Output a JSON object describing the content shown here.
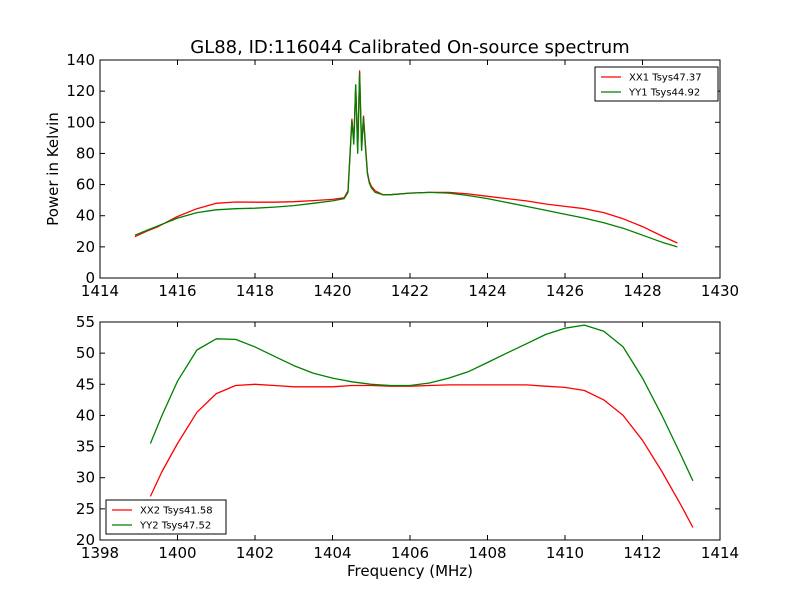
{
  "figure": {
    "title": "GL88, ID:116044 Calibrated On-source spectrum"
  },
  "colors": {
    "red": "#ff0000",
    "green": "#008000",
    "axes": "#000000",
    "background": "#ffffff"
  },
  "chart_data": [
    {
      "type": "line",
      "title": "GL88, ID:116044 Calibrated On-source spectrum",
      "xlabel": "",
      "ylabel": "Power in Kelvin",
      "xlim": [
        1414,
        1430
      ],
      "ylim": [
        0,
        140
      ],
      "xticks": [
        1414,
        1416,
        1418,
        1420,
        1422,
        1424,
        1426,
        1428,
        1430
      ],
      "yticks": [
        0,
        20,
        40,
        60,
        80,
        100,
        120,
        140
      ],
      "grid": false,
      "legend_placement": "top-right",
      "series": [
        {
          "name": "XX1 Tsys47.37",
          "color": "#ff0000",
          "x": [
            1414.9,
            1415.2,
            1415.5,
            1416.0,
            1416.5,
            1417.0,
            1417.5,
            1418.0,
            1418.5,
            1419.0,
            1419.5,
            1420.0,
            1420.3,
            1420.4,
            1420.5,
            1420.55,
            1420.6,
            1420.65,
            1420.7,
            1420.75,
            1420.8,
            1420.85,
            1420.9,
            1420.95,
            1421.0,
            1421.1,
            1421.3,
            1421.5,
            1422.0,
            1422.5,
            1423.0,
            1423.5,
            1424.0,
            1424.5,
            1425.0,
            1425.5,
            1426.0,
            1426.5,
            1427.0,
            1427.5,
            1428.0,
            1428.5,
            1428.9
          ],
          "y": [
            26.5,
            30,
            33,
            39.5,
            44.5,
            48,
            48.8,
            48.7,
            48.7,
            49,
            49.7,
            50.5,
            51.5,
            56,
            102,
            88,
            124,
            82,
            133,
            84,
            104,
            86,
            68,
            62,
            59,
            56,
            53.5,
            53.5,
            54.5,
            55,
            55,
            54,
            52.5,
            51,
            49.5,
            47.5,
            46,
            44.5,
            42,
            38,
            33,
            27,
            22.5
          ]
        },
        {
          "name": "YY1 Tsys44.92",
          "color": "#008000",
          "x": [
            1414.9,
            1415.2,
            1415.5,
            1416.0,
            1416.5,
            1417.0,
            1417.5,
            1418.0,
            1418.5,
            1419.0,
            1419.5,
            1420.0,
            1420.3,
            1420.4,
            1420.5,
            1420.55,
            1420.6,
            1420.65,
            1420.7,
            1420.75,
            1420.8,
            1420.85,
            1420.9,
            1420.95,
            1421.0,
            1421.1,
            1421.3,
            1421.5,
            1422.0,
            1422.5,
            1423.0,
            1423.5,
            1424.0,
            1424.5,
            1425.0,
            1425.5,
            1426.0,
            1426.5,
            1427.0,
            1427.5,
            1428.0,
            1428.5,
            1428.9
          ],
          "y": [
            27.5,
            30.5,
            33.5,
            38.5,
            42,
            43.8,
            44.5,
            44.8,
            45.5,
            46.5,
            48,
            49.5,
            51,
            55,
            101,
            86,
            124,
            80,
            132,
            82,
            103,
            84,
            67,
            61,
            58,
            55,
            53.5,
            53.5,
            54.5,
            55,
            54.5,
            53,
            51,
            48.5,
            46,
            43.5,
            41,
            38.5,
            35.5,
            32,
            27.5,
            23,
            20
          ]
        }
      ]
    },
    {
      "type": "line",
      "title": "",
      "xlabel": "Frequency (MHz)",
      "ylabel": "",
      "xlim": [
        1398,
        1414
      ],
      "ylim": [
        20,
        55
      ],
      "xticks": [
        1398,
        1400,
        1402,
        1404,
        1406,
        1408,
        1410,
        1412,
        1414
      ],
      "yticks": [
        20,
        25,
        30,
        35,
        40,
        45,
        50,
        55
      ],
      "grid": false,
      "legend_placement": "bottom-left",
      "series": [
        {
          "name": "XX2 Tsys41.58",
          "color": "#ff0000",
          "x": [
            1399.3,
            1399.6,
            1400.0,
            1400.5,
            1401.0,
            1401.5,
            1402.0,
            1402.5,
            1403.0,
            1403.5,
            1404.0,
            1404.5,
            1405.0,
            1405.5,
            1406.0,
            1406.5,
            1407.0,
            1407.5,
            1408.0,
            1408.5,
            1409.0,
            1409.5,
            1410.0,
            1410.5,
            1411.0,
            1411.5,
            1412.0,
            1412.5,
            1413.0,
            1413.3
          ],
          "y": [
            27,
            31,
            35.5,
            40.5,
            43.5,
            44.8,
            45,
            44.8,
            44.6,
            44.6,
            44.6,
            44.8,
            44.8,
            44.7,
            44.7,
            44.8,
            44.9,
            44.9,
            44.9,
            44.9,
            44.9,
            44.7,
            44.5,
            44,
            42.5,
            40,
            36,
            31,
            25.5,
            22
          ]
        },
        {
          "name": "YY2 Tsys47.52",
          "color": "#008000",
          "x": [
            1399.3,
            1399.6,
            1400.0,
            1400.5,
            1401.0,
            1401.5,
            1402.0,
            1402.5,
            1403.0,
            1403.5,
            1404.0,
            1404.5,
            1405.0,
            1405.5,
            1406.0,
            1406.5,
            1407.0,
            1407.5,
            1408.0,
            1408.5,
            1409.0,
            1409.5,
            1410.0,
            1410.5,
            1411.0,
            1411.5,
            1412.0,
            1412.5,
            1413.0,
            1413.3
          ],
          "y": [
            35.5,
            40,
            45.5,
            50.5,
            52.3,
            52.2,
            51,
            49.5,
            48,
            46.8,
            46,
            45.4,
            45,
            44.8,
            44.8,
            45.2,
            46,
            47,
            48.5,
            50,
            51.5,
            53,
            54,
            54.5,
            53.5,
            51,
            46,
            40,
            33.5,
            29.5
          ]
        }
      ]
    }
  ]
}
